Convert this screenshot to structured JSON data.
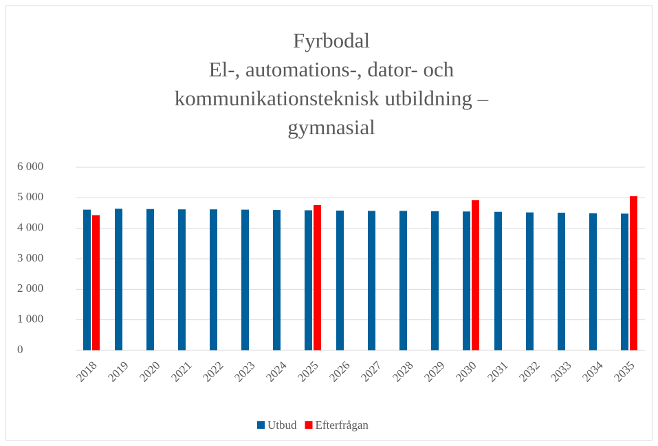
{
  "chart_data": {
    "type": "bar",
    "title": [
      "Fyrbodal",
      "El-, automations-, dator- och",
      "kommunikationsteknisk utbildning  –",
      "gymnasial"
    ],
    "categories": [
      "2018",
      "2019",
      "2020",
      "2021",
      "2022",
      "2023",
      "2024",
      "2025",
      "2026",
      "2027",
      "2028",
      "2029",
      "2030",
      "2031",
      "2032",
      "2033",
      "2034",
      "2035"
    ],
    "series": [
      {
        "name": "Utbud",
        "color": "#00609c",
        "values": [
          4610,
          4640,
          4630,
          4620,
          4620,
          4610,
          4600,
          4590,
          4580,
          4570,
          4570,
          4560,
          4550,
          4540,
          4520,
          4510,
          4490,
          4480
        ]
      },
      {
        "name": "Efterfrågan",
        "color": "#ff0000",
        "values": [
          4430,
          null,
          null,
          null,
          null,
          null,
          null,
          4760,
          null,
          null,
          null,
          null,
          4920,
          null,
          null,
          null,
          null,
          5050
        ]
      }
    ],
    "ylim": [
      0,
      6000
    ],
    "yticks": [
      0,
      {
        "value": 1000,
        "label": "1 000"
      },
      {
        "value": 2000,
        "label": "2 000"
      },
      {
        "value": 3000,
        "label": "3 000"
      },
      {
        "value": 4000,
        "label": "4 000"
      },
      {
        "value": 5000,
        "label": "5 000"
      },
      {
        "value": 6000,
        "label": "6 000"
      }
    ],
    "grid": true,
    "legend": "bottom"
  }
}
